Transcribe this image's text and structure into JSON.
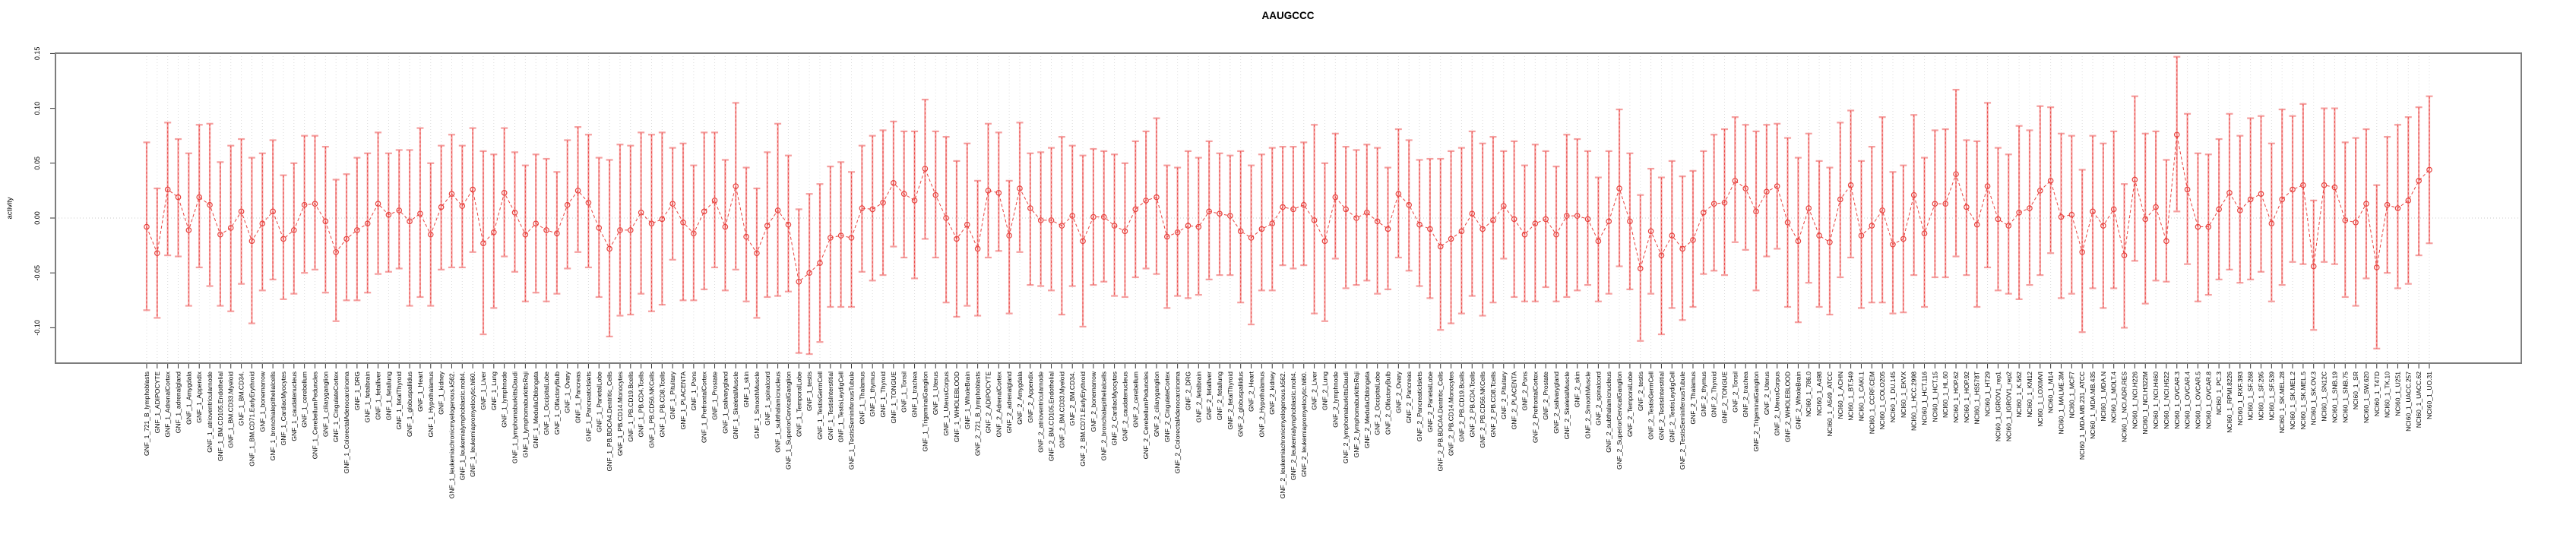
{
  "title": "AAUGCCC",
  "ylabel": "activity",
  "colors": {
    "point": "#e8433f",
    "series_line": "#e8433f",
    "error_bar": "#f59f9f",
    "grid": "#dcdcdc",
    "zero_line": "#c9c9c9",
    "frame": "#7d7d7d",
    "tick": "#333333",
    "text": "#000000"
  },
  "chart_data": {
    "type": "line",
    "subtype": "points-with-error-bars",
    "title": "AAUGCCC",
    "xlabel": "",
    "ylabel": "activity",
    "ylim": [
      -0.132,
      0.15
    ],
    "yticks": [
      0.15,
      0.1,
      0.05,
      0.0,
      -0.05,
      -0.1
    ],
    "grid": "vertical dotted gridline at every category; dotted horizontal line at y=0",
    "legend": "none",
    "categories": [
      "GNF_1_721_B_lymphoblasts",
      "GNF_1_ADIPOCYTE",
      "GNF_1_AdrenalCortex",
      "GNF_1_adrenalgland",
      "GNF_1_Amygdala",
      "GNF_1_Appendix",
      "GNF_1_atrioventricularnode",
      "GNF_1_BM.CD105.Endothelial",
      "GNF_1_BM.CD33.Myeloid",
      "GNF_1_BM.CD34.",
      "GNF_1_BM.CD71.EarlyErythroid",
      "GNF_1_bonemarrow",
      "GNF_1_bronchialepithelialcells",
      "GNF_1_CardiacMyocytes",
      "GNF_1_caudatenucleus",
      "GNF_1_cerebellum",
      "GNF_1_CerebellumPeduncles",
      "GNF_1_ciliaryganglion",
      "GNF_1_CingulateCortex",
      "GNF_1_ColorectalAdenocarcinoma",
      "GNF_1_DRG",
      "GNF_1_fetalbrain",
      "GNF_1_fetalliver",
      "GNF_1_fetallung",
      "GNF_1_fetalThyroid",
      "GNF_1_globuspallidus",
      "GNF_1_Heart",
      "GNF_1_Hypothalamus",
      "GNF_1_kidney",
      "GNF_1_leukemiachronicmyelogenous.k562.",
      "GNF_1_leukemialymphoblastic.molt4.",
      "GNF_1_leukemiapromyelocytic.hl60.",
      "GNF_1_Liver",
      "GNF_1_Lung",
      "GNF_1_lymphnode",
      "GNF_1_lymphomaburkittsDaudi",
      "GNF_1_lymphomaburkittsRaji",
      "GNF_1_MedullaOblongata",
      "GNF_1_OccipitalLobe",
      "GNF_1_OlfactoryBulb",
      "GNF_1_Ovary",
      "GNF_1_Pancreas",
      "GNF_1_PancreaticIslets",
      "GNF_1_ParietalLobe",
      "GNF_1_PB.BDCA4.Dentritic_Cells",
      "GNF_1_PB.CD14.Monocytes",
      "GNF_1_PB.CD19.Bcells",
      "GNF_1_PB.CD4.Tcells",
      "GNF_1_PB.CD56.NKCells",
      "GNF_1_PB.CD8.Tcells",
      "GNF_1_Pituitary",
      "GNF_1_PLACENTA",
      "GNF_1_Pons",
      "GNF_1_PrefrontalCortex",
      "GNF_1_Prostate",
      "GNF_1_salivarygland",
      "GNF_1_SkeletalMuscle",
      "GNF_1_skin",
      "GNF_1_SmoothMuscle",
      "GNF_1_spinalcord",
      "GNF_1_subthalamicnucleus",
      "GNF_1_SuperiorCervicalGanglion",
      "GNF_1_TemporalLobe",
      "GNF_1_testis",
      "GNF_1_TestisGermCell",
      "GNF_1_TestisInterstitial",
      "GNF_1_TestisLeydigCell",
      "GNF_1_TestisSeminiferousTubule",
      "GNF_1_Thalamus",
      "GNF_1_thymus",
      "GNF_1_Thyroid",
      "GNF_1_TONGUE",
      "GNF_1_Tonsil",
      "GNF_1_trachea",
      "GNF_1_TrigeminalGanglion",
      "GNF_1_Uterus",
      "GNF_1_UterusCorpus",
      "GNF_1_WHOLEBLOOD",
      "GNF_1_WholeBrain",
      "GNF_2_721_B_lymphoblasts",
      "GNF_2_ADIPOCYTE",
      "GNF_2_AdrenalCortex",
      "GNF_2_adrenalgland",
      "GNF_2_Amygdala",
      "GNF_2_Appendix",
      "GNF_2_atrioventricularnode",
      "GNF_2_BM.CD105.Endothelial",
      "GNF_2_BM.CD33.Myeloid",
      "GNF_2_BM.CD34.",
      "GNF_2_BM.CD71.EarlyErythroid",
      "GNF_2_bonemarrow",
      "GNF_2_bronchialepithelialcells",
      "GNF_2_CardiacMyocytes",
      "GNF_2_caudatenucleus",
      "GNF_2_cerebellum",
      "GNF_2_CerebellumPeduncles",
      "GNF_2_ciliaryganglion",
      "GNF_2_CingulateCortex",
      "GNF_2_ColorectalAdenocarcinoma",
      "GNF_2_DRG",
      "GNF_2_fetalbrain",
      "GNF_2_fetalliver",
      "GNF_2_fetallung",
      "GNF_2_fetalThyroid",
      "GNF_2_globuspallidus",
      "GNF_2_Heart",
      "GNF_2_Hypothalamus",
      "GNF_2_kidney",
      "GNF_2_leukemiachronicmyelogenous.k562.",
      "GNF_2_leukemialymphoblastic.molt4.",
      "GNF_2_leukemiapromyelocytic.hl60.",
      "GNF_2_Liver",
      "GNF_2_Lung",
      "GNF_2_lymphnode",
      "GNF_2_lymphomaburkittsDaudi",
      "GNF_2_lymphomaburkittsRaji",
      "GNF_2_MedullaOblongata",
      "GNF_2_OccipitalLobe",
      "GNF_2_OlfactoryBulb",
      "GNF_2_Ovary",
      "GNF_2_Pancreas",
      "GNF_2_PancreaticIslets",
      "GNF_2_ParietalLobe",
      "GNF_2_PB.BDCA4.Dentritic_Cells",
      "GNF_2_PB.CD14.Monocytes",
      "GNF_2_PB.CD19.Bcells",
      "GNF_2_PB.CD4.Tcells",
      "GNF_2_PB.CD56.NKCells",
      "GNF_2_PB.CD8.Tcells",
      "GNF_2_Pituitary",
      "GNF_2_PLACENTA",
      "GNF_2_Pons",
      "GNF_2_PrefrontalCortex",
      "GNF_2_Prostate",
      "GNF_2_salivarygland",
      "GNF_2_SkeletalMuscle",
      "GNF_2_skin",
      "GNF_2_SmoothMuscle",
      "GNF_2_spinalcord",
      "GNF_2_subthalamicnucleus",
      "GNF_2_SuperiorCervicalGanglion",
      "GNF_2_TemporalLobe",
      "GNF_2_testis",
      "GNF_2_TestisGermCell",
      "GNF_2_TestisInterstitial",
      "GNF_2_TestisLeydigCell",
      "GNF_2_TestisSeminiferousTubule",
      "GNF_2_Thalamus",
      "GNF_2_thymus",
      "GNF_2_Thyroid",
      "GNF_2_TONGUE",
      "GNF_2_Tonsil",
      "GNF_2_trachea",
      "GNF_2_TrigeminalGanglion",
      "GNF_2_Uterus",
      "GNF_2_UterusCorpus",
      "GNF_2_WHOLEBLOOD",
      "GNF_2_WholeBrain",
      "NCI60_1_786.0",
      "NCI60_1_A498",
      "NCI60_1_A549_ATCC",
      "NCI60_1_ACHN",
      "NCI60_1_BT.549",
      "NCI60_1_CAKI.1",
      "NCI60_1_CCRF.CEM",
      "NCI60_1_COLO205",
      "NCI60_1_DU.145",
      "NCI60_1_EKVX",
      "NCI60_1_HCC.2998",
      "NCI60_1_HCT.116",
      "NCI60_1_HCT.15",
      "NCI60_1_HL.60",
      "NCI60_1_HOP.62",
      "NCI60_1_HOP.92",
      "NCI60_1_HS578T",
      "NCI60_1_HT29",
      "NCI60_1_IGROV1_rep1",
      "NCI60_1_IGROV1_rep2",
      "NCI60_1_K.562",
      "NCI60_1_KM12",
      "NCI60_1_LOXIMVI",
      "NCI60_1_M14",
      "NCI60_1_MALME.3M",
      "NCI60_1_MCF7",
      "NCI60_1_MDA.MB.231_ATCC",
      "NCI60_1_MDA.MB.435",
      "NCI60_1_MDA.N",
      "NCI60_1_MOLT.4",
      "NCI60_1_NCI.ADR.RES",
      "NCI60_1_NCI.H226",
      "NCI60_1_NCI.H322M",
      "NCI60_1_NCI.H460",
      "NCI60_1_NCI.H522",
      "NCI60_1_OVCAR.3",
      "NCI60_1_OVCAR.4",
      "NCI60_1_OVCAR.5",
      "NCI60_1_OVCAR.8",
      "NCI60_1_PC.3",
      "NCI60_1_RPMI.8226",
      "NCI60_1_RXF.393",
      "NCI60_1_SF.268",
      "NCI60_1_SF.295",
      "NCI60_1_SF.539",
      "NCI60_1_SK.MEL.28",
      "NCI60_1_SK.MEL.2",
      "NCI60_1_SK.MEL.5",
      "NCI60_1_SK.OV.3",
      "NCI60_1_SN12C",
      "NCI60_1_SNB.19",
      "NCI60_1_SNB.75",
      "NCI60_1_SR",
      "NCI60_1_SW.620",
      "NCI60_1_T47D",
      "NCI60_1_TK.10",
      "NCI60_1_U251",
      "NCI60_1_UACC.257",
      "NCI60_1_UACC.62",
      "NCI60_1_UO.31"
    ],
    "values": [
      -0.008,
      -0.032,
      0.026,
      0.019,
      -0.011,
      0.019,
      0.012,
      -0.015,
      -0.009,
      0.006,
      -0.021,
      -0.005,
      0.006,
      -0.019,
      -0.011,
      0.012,
      0.013,
      -0.003,
      -0.031,
      -0.019,
      -0.011,
      -0.005,
      0.013,
      0.003,
      0.007,
      -0.003,
      0.004,
      -0.015,
      0.01,
      0.022,
      0.011,
      0.026,
      -0.023,
      -0.013,
      0.023,
      0.005,
      -0.015,
      -0.005,
      -0.011,
      -0.014,
      0.012,
      0.025,
      0.014,
      -0.009,
      -0.028,
      -0.011,
      -0.011,
      0.005,
      -0.005,
      -0.001,
      0.013,
      -0.004,
      -0.014,
      0.006,
      0.016,
      -0.008,
      0.029,
      -0.017,
      -0.032,
      -0.007,
      0.007,
      -0.006,
      -0.058,
      -0.05,
      -0.041,
      -0.018,
      -0.016,
      -0.018,
      0.009,
      0.008,
      0.014,
      0.032,
      0.022,
      0.016,
      0.045,
      0.021,
      0.0,
      -0.019,
      -0.006,
      -0.028,
      0.025,
      0.023,
      -0.016,
      0.027,
      0.009,
      -0.002,
      -0.002,
      -0.007,
      0.002,
      -0.021,
      0.001,
      0.001,
      -0.007,
      -0.012,
      0.008,
      0.016,
      0.019,
      -0.017,
      -0.013,
      -0.007,
      -0.008,
      0.006,
      0.004,
      0.002,
      -0.012,
      -0.018,
      -0.01,
      -0.005,
      0.01,
      0.008,
      0.012,
      -0.002,
      -0.021,
      0.019,
      0.008,
      0.0,
      0.005,
      -0.003,
      -0.01,
      0.022,
      0.012,
      -0.006,
      -0.01,
      -0.026,
      -0.019,
      -0.012,
      0.004,
      -0.01,
      -0.002,
      0.011,
      -0.001,
      -0.015,
      -0.005,
      -0.001,
      -0.015,
      0.002,
      0.002,
      -0.001,
      -0.021,
      -0.003,
      0.027,
      -0.003,
      -0.046,
      -0.012,
      -0.034,
      -0.016,
      -0.028,
      -0.02,
      0.005,
      0.013,
      0.014,
      0.034,
      0.027,
      0.006,
      0.024,
      0.029,
      -0.004,
      -0.021,
      0.009,
      -0.016,
      -0.022,
      0.017,
      0.03,
      -0.016,
      -0.007,
      0.007,
      -0.024,
      -0.019,
      0.021,
      -0.014,
      0.013,
      0.013,
      0.04,
      0.01,
      -0.006,
      0.029,
      -0.001,
      -0.007,
      0.005,
      0.009,
      0.025,
      0.034,
      0.001,
      0.003,
      -0.031,
      0.006,
      -0.007,
      0.008,
      -0.034,
      0.035,
      -0.001,
      0.01,
      -0.021,
      0.076,
      0.026,
      -0.008,
      -0.008,
      0.008,
      0.023,
      0.007,
      0.017,
      0.022,
      -0.005,
      0.017,
      0.026,
      0.03,
      -0.044,
      0.03,
      0.028,
      -0.002,
      -0.004,
      0.013,
      -0.045,
      0.012,
      0.009,
      0.016,
      0.034,
      0.044
    ],
    "upper": [
      0.069,
      0.027,
      0.087,
      0.072,
      0.059,
      0.085,
      0.086,
      0.051,
      0.066,
      0.072,
      0.055,
      0.059,
      0.071,
      0.039,
      0.05,
      0.075,
      0.075,
      0.065,
      0.035,
      0.04,
      0.055,
      0.059,
      0.078,
      0.059,
      0.062,
      0.062,
      0.082,
      0.05,
      0.066,
      0.076,
      0.066,
      0.082,
      0.061,
      0.058,
      0.082,
      0.06,
      0.048,
      0.058,
      0.054,
      0.042,
      0.071,
      0.083,
      0.076,
      0.055,
      0.053,
      0.067,
      0.066,
      0.078,
      0.076,
      0.078,
      0.064,
      0.068,
      0.048,
      0.078,
      0.078,
      0.053,
      0.105,
      0.046,
      0.027,
      0.06,
      0.086,
      0.057,
      0.008,
      0.022,
      0.031,
      0.047,
      0.051,
      0.042,
      0.066,
      0.075,
      0.08,
      0.088,
      0.079,
      0.079,
      0.108,
      0.079,
      0.074,
      0.052,
      0.068,
      0.034,
      0.086,
      0.078,
      0.034,
      0.087,
      0.059,
      0.06,
      0.064,
      0.074,
      0.066,
      0.057,
      0.063,
      0.061,
      0.058,
      0.05,
      0.07,
      0.079,
      0.091,
      0.048,
      0.046,
      0.061,
      0.055,
      0.07,
      0.059,
      0.057,
      0.061,
      0.048,
      0.058,
      0.064,
      0.065,
      0.065,
      0.069,
      0.085,
      0.05,
      0.077,
      0.065,
      0.062,
      0.067,
      0.064,
      0.046,
      0.081,
      0.071,
      0.053,
      0.054,
      0.054,
      0.061,
      0.064,
      0.079,
      0.068,
      0.074,
      0.061,
      0.07,
      0.048,
      0.067,
      0.061,
      0.047,
      0.076,
      0.072,
      0.061,
      0.037,
      0.061,
      0.099,
      0.059,
      0.021,
      0.045,
      0.037,
      0.052,
      0.038,
      0.043,
      0.061,
      0.076,
      0.081,
      0.092,
      0.085,
      0.079,
      0.085,
      0.086,
      0.073,
      0.055,
      0.077,
      0.052,
      0.046,
      0.087,
      0.098,
      0.052,
      0.065,
      0.092,
      0.042,
      0.048,
      0.094,
      0.055,
      0.08,
      0.081,
      0.117,
      0.071,
      0.07,
      0.105,
      0.064,
      0.058,
      0.084,
      0.08,
      0.102,
      0.101,
      0.077,
      0.075,
      0.044,
      0.075,
      0.068,
      0.079,
      0.031,
      0.111,
      0.077,
      0.079,
      0.053,
      0.147,
      0.095,
      0.059,
      0.058,
      0.072,
      0.095,
      0.075,
      0.091,
      0.093,
      0.068,
      0.099,
      0.093,
      0.104,
      0.016,
      0.1,
      0.1,
      0.069,
      0.073,
      0.081,
      0.03,
      0.074,
      0.085,
      0.092,
      0.101,
      0.111
    ],
    "lower": [
      -0.084,
      -0.091,
      -0.034,
      -0.035,
      -0.08,
      -0.045,
      -0.062,
      -0.08,
      -0.085,
      -0.06,
      -0.096,
      -0.066,
      -0.056,
      -0.074,
      -0.069,
      -0.05,
      -0.047,
      -0.068,
      -0.094,
      -0.075,
      -0.075,
      -0.068,
      -0.051,
      -0.049,
      -0.046,
      -0.08,
      -0.072,
      -0.08,
      -0.047,
      -0.045,
      -0.045,
      -0.031,
      -0.106,
      -0.082,
      -0.035,
      -0.049,
      -0.076,
      -0.068,
      -0.076,
      -0.069,
      -0.046,
      -0.031,
      -0.045,
      -0.072,
      -0.108,
      -0.089,
      -0.088,
      -0.069,
      -0.085,
      -0.079,
      -0.038,
      -0.075,
      -0.075,
      -0.065,
      -0.045,
      -0.066,
      -0.047,
      -0.076,
      -0.091,
      -0.072,
      -0.071,
      -0.067,
      -0.123,
      -0.124,
      -0.113,
      -0.081,
      -0.081,
      -0.081,
      -0.049,
      -0.057,
      -0.052,
      -0.026,
      -0.036,
      -0.055,
      -0.019,
      -0.036,
      -0.077,
      -0.09,
      -0.08,
      -0.089,
      -0.036,
      -0.03,
      -0.087,
      -0.031,
      -0.061,
      -0.062,
      -0.066,
      -0.088,
      -0.062,
      -0.099,
      -0.061,
      -0.058,
      -0.071,
      -0.072,
      -0.054,
      -0.046,
      -0.051,
      -0.082,
      -0.071,
      -0.073,
      -0.07,
      -0.056,
      -0.052,
      -0.052,
      -0.077,
      -0.097,
      -0.066,
      -0.066,
      -0.043,
      -0.046,
      -0.043,
      -0.087,
      -0.094,
      -0.037,
      -0.064,
      -0.061,
      -0.057,
      -0.069,
      -0.065,
      -0.036,
      -0.048,
      -0.062,
      -0.073,
      -0.102,
      -0.096,
      -0.087,
      -0.071,
      -0.089,
      -0.077,
      -0.037,
      -0.072,
      -0.076,
      -0.076,
      -0.063,
      -0.076,
      -0.072,
      -0.066,
      -0.061,
      -0.076,
      -0.069,
      -0.044,
      -0.065,
      -0.112,
      -0.069,
      -0.106,
      -0.082,
      -0.093,
      -0.081,
      -0.051,
      -0.048,
      -0.052,
      -0.022,
      -0.029,
      -0.066,
      -0.035,
      -0.028,
      -0.081,
      -0.095,
      -0.059,
      -0.081,
      -0.088,
      -0.054,
      -0.036,
      -0.082,
      -0.077,
      -0.077,
      -0.087,
      -0.086,
      -0.052,
      -0.081,
      -0.054,
      -0.054,
      -0.035,
      -0.052,
      -0.081,
      -0.045,
      -0.066,
      -0.069,
      -0.074,
      -0.061,
      -0.052,
      -0.032,
      -0.073,
      -0.069,
      -0.104,
      -0.064,
      -0.082,
      -0.064,
      -0.1,
      -0.039,
      -0.078,
      -0.057,
      -0.058,
      0.006,
      -0.042,
      -0.076,
      -0.07,
      -0.056,
      -0.047,
      -0.059,
      -0.056,
      -0.049,
      -0.076,
      -0.061,
      -0.04,
      -0.042,
      -0.102,
      -0.04,
      -0.042,
      -0.072,
      -0.08,
      -0.055,
      -0.119,
      -0.05,
      -0.064,
      -0.06,
      -0.034,
      -0.023
    ]
  }
}
